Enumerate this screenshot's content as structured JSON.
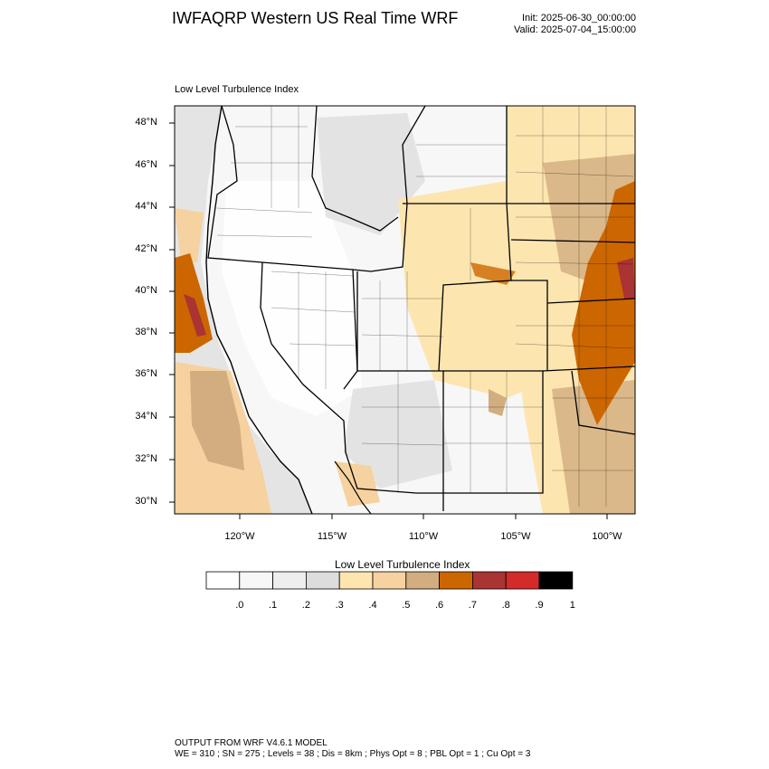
{
  "header": {
    "title": "IWFAQRP Western US Real Time WRF",
    "init": "Init: 2025-06-30_00:00:00",
    "valid": "Valid: 2025-07-04_15:00:00"
  },
  "map": {
    "plot_label": "Low Level Turbulence Index",
    "lat_labels": [
      "48°N",
      "46°N",
      "44°N",
      "42°N",
      "40°N",
      "38°N",
      "36°N",
      "34°N",
      "32°N",
      "30°N"
    ],
    "lon_labels": [
      "120°W",
      "115°W",
      "110°W",
      "105°W",
      "100°W"
    ]
  },
  "colorbar": {
    "title": "Low Level Turbulence Index",
    "ticks": [
      ".0",
      ".1",
      ".2",
      ".3",
      ".4",
      ".5",
      ".6",
      ".7",
      ".8",
      ".9",
      "1"
    ],
    "colors": [
      "#ffffff",
      "#f7f7f7",
      "#eeeeee",
      "#dddddd",
      "#fde5b0",
      "#f5d29f",
      "#d2ad80",
      "#cc6600",
      "#aa3333",
      "#d42a2a",
      "#000000"
    ]
  },
  "footer": {
    "line1": "OUTPUT FROM WRF V4.6.1 MODEL",
    "line2": "WE = 310 ; SN = 275 ; Levels = 38 ; Dis = 8km ; Phys Opt = 8 ; PBL Opt = 1 ; Cu Opt = 3"
  }
}
